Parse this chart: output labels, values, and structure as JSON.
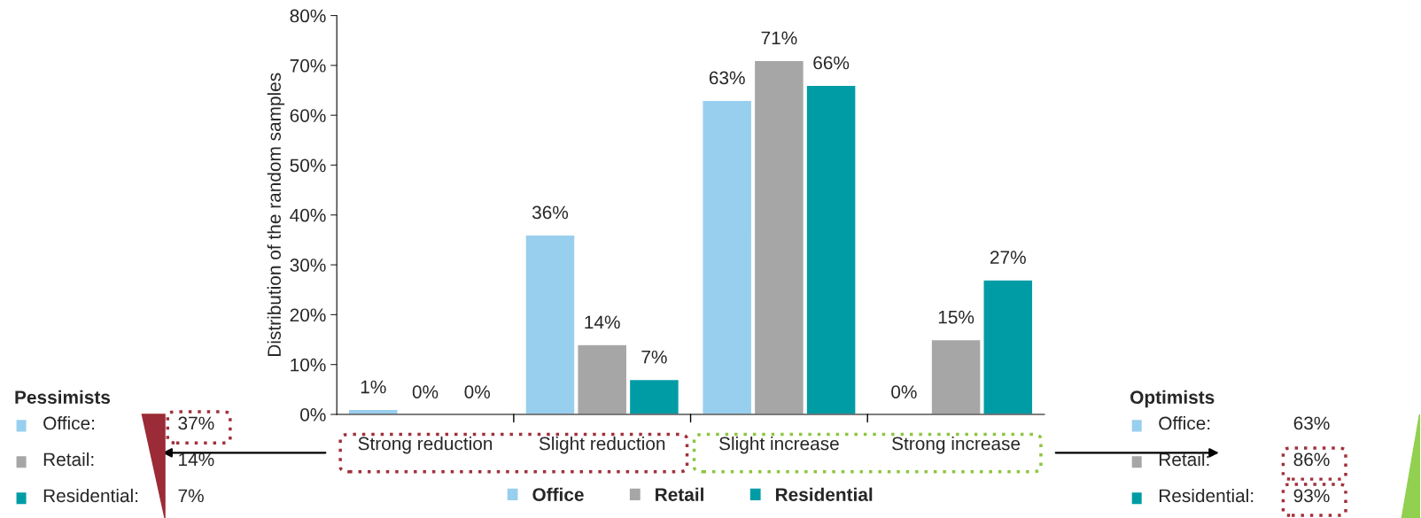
{
  "chart_data": {
    "type": "bar",
    "ylabel": "Distribution of the random samples",
    "categories": [
      "Strong reduction",
      "Slight reduction",
      "Slight increase",
      "Strong increase"
    ],
    "series": [
      {
        "name": "Office",
        "color": "#99cfee",
        "values": [
          1,
          36,
          63,
          0
        ]
      },
      {
        "name": "Retail",
        "color": "#a6a6a6",
        "values": [
          0,
          14,
          71,
          15
        ]
      },
      {
        "name": "Residential",
        "color": "#009ca6",
        "values": [
          0,
          7,
          66,
          27
        ]
      }
    ],
    "ylim": [
      0,
      80
    ],
    "yticks": [
      {
        "value": 0,
        "label": "0%"
      },
      {
        "value": 10,
        "label": "10%"
      },
      {
        "value": 20,
        "label": "20%"
      },
      {
        "value": 30,
        "label": "30%"
      },
      {
        "value": 40,
        "label": "40%"
      },
      {
        "value": 50,
        "label": "50%"
      },
      {
        "value": 60,
        "label": "60%"
      },
      {
        "value": 70,
        "label": "70%"
      },
      {
        "value": 80,
        "label": "80%"
      }
    ],
    "value_labels": [
      [
        "1%",
        "36%",
        "63%",
        "0%"
      ],
      [
        "0%",
        "14%",
        "71%",
        "15%"
      ],
      [
        "0%",
        "7%",
        "66%",
        "27%"
      ]
    ],
    "grid": false,
    "legend": "bottom",
    "annotations": [
      "Pessimists",
      "Office:",
      "37%",
      "Retail:",
      "14%",
      "Residential:",
      "7%",
      "Optimists",
      "Office:",
      "63%",
      "Retail:",
      "86%",
      "Residential:",
      "93%"
    ]
  }
}
